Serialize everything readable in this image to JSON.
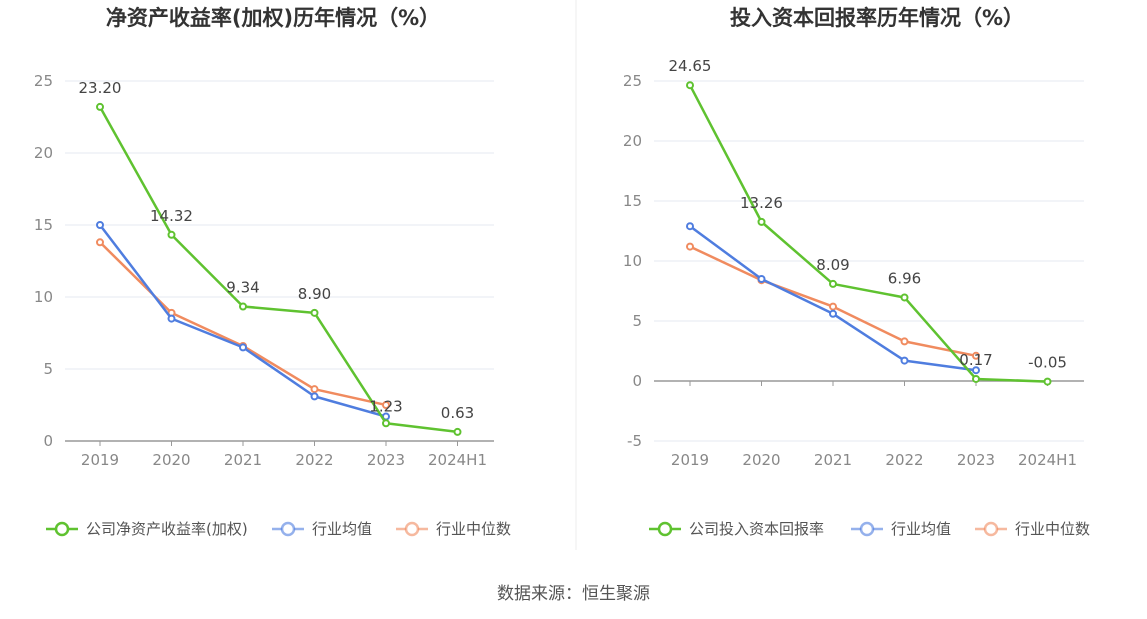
{
  "source": "数据来源：恒生聚源",
  "charts": [
    {
      "type": "line",
      "title": "净资产收益率(加权)历年情况（%）",
      "categories": [
        "2019",
        "2020",
        "2021",
        "2022",
        "2023",
        "2024H1"
      ],
      "ylim": [
        0,
        25
      ],
      "yticks": [
        0,
        5,
        10,
        15,
        20,
        25
      ],
      "ytick_labels": [
        "0",
        "5",
        "10",
        "15",
        "20",
        "25"
      ],
      "series": [
        {
          "name": "公司净资产收益率(加权)",
          "color": "#5fc230",
          "values": [
            23.2,
            14.32,
            9.34,
            8.9,
            1.23,
            0.63
          ],
          "labels": [
            "23.20",
            "14.32",
            "9.34",
            "8.90",
            "1.23",
            "0.63"
          ]
        },
        {
          "name": "行业均值",
          "color": "#4f7ddf",
          "values": [
            15.0,
            8.5,
            6.5,
            3.1,
            1.7,
            null
          ]
        },
        {
          "name": "行业中位数",
          "color": "#f08b5f",
          "values": [
            13.8,
            8.9,
            6.6,
            3.6,
            2.5,
            null
          ]
        }
      ]
    },
    {
      "type": "line",
      "title": "投入资本回报率历年情况（%）",
      "categories": [
        "2019",
        "2020",
        "2021",
        "2022",
        "2023",
        "2024H1"
      ],
      "ylim": [
        -5,
        25
      ],
      "yticks": [
        -5,
        0,
        5,
        10,
        15,
        20,
        25
      ],
      "ytick_labels": [
        "-5",
        "0",
        "5",
        "10",
        "15",
        "20",
        "25"
      ],
      "series": [
        {
          "name": "公司投入资本回报率",
          "color": "#5fc230",
          "values": [
            24.65,
            13.26,
            8.09,
            6.96,
            0.17,
            -0.05
          ],
          "labels": [
            "24.65",
            "13.26",
            "8.09",
            "6.96",
            "0.17",
            "-0.05"
          ]
        },
        {
          "name": "行业均值",
          "color": "#4f7ddf",
          "values": [
            12.9,
            8.5,
            5.6,
            1.7,
            0.9,
            null
          ]
        },
        {
          "name": "行业中位数",
          "color": "#f08b5f",
          "values": [
            11.2,
            8.4,
            6.2,
            3.3,
            2.1,
            null
          ]
        }
      ]
    }
  ],
  "chart_data": [
    {
      "type": "line",
      "title": "净资产收益率(加权)历年情况（%）",
      "categories": [
        "2019",
        "2020",
        "2021",
        "2022",
        "2023",
        "2024H1"
      ],
      "ylim": [
        0,
        25
      ],
      "series": [
        {
          "name": "公司净资产收益率(加权)",
          "values": [
            23.2,
            14.32,
            9.34,
            8.9,
            1.23,
            0.63
          ]
        },
        {
          "name": "行业均值",
          "values": [
            15.0,
            8.5,
            6.5,
            3.1,
            1.7,
            null
          ]
        },
        {
          "name": "行业中位数",
          "values": [
            13.8,
            8.9,
            6.6,
            3.6,
            2.5,
            null
          ]
        }
      ],
      "legend": "bottom"
    },
    {
      "type": "line",
      "title": "投入资本回报率历年情况（%）",
      "categories": [
        "2019",
        "2020",
        "2021",
        "2022",
        "2023",
        "2024H1"
      ],
      "ylim": [
        -5,
        25
      ],
      "series": [
        {
          "name": "公司投入资本回报率",
          "values": [
            24.65,
            13.26,
            8.09,
            6.96,
            0.17,
            -0.05
          ]
        },
        {
          "name": "行业均值",
          "values": [
            12.9,
            8.5,
            5.6,
            1.7,
            0.9,
            null
          ]
        },
        {
          "name": "行业中位数",
          "values": [
            11.2,
            8.4,
            6.2,
            3.3,
            2.1,
            null
          ]
        }
      ],
      "legend": "bottom"
    }
  ]
}
